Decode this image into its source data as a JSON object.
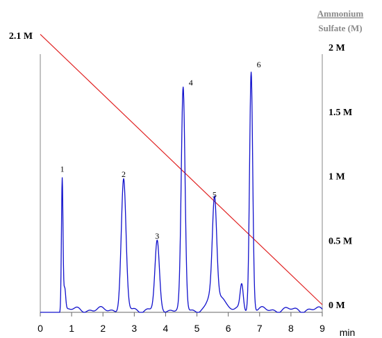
{
  "chart_data": {
    "type": "line",
    "x_axis": {
      "unit_label": "min",
      "range": [
        0,
        9
      ],
      "ticks": [
        "0",
        "1",
        "2",
        "3",
        "4",
        "5",
        "6",
        "7",
        "8",
        "9"
      ]
    },
    "right_axis": {
      "title_line1": "Ammonium",
      "title_line2": "Sulfate (M)",
      "range": [
        0,
        2
      ],
      "ticks": [
        {
          "value": 0,
          "label": "0 M"
        },
        {
          "value": 0.5,
          "label": "0.5 M"
        },
        {
          "value": 1,
          "label": "1 M"
        },
        {
          "value": 1.5,
          "label": "1.5 M"
        },
        {
          "value": 2,
          "label": "2 M"
        }
      ]
    },
    "gradient_start_label": "2.1 M",
    "series": [
      {
        "kind": "chromatogram",
        "color": "#1010cc",
        "baseline": 0.02,
        "start_x": 0.63,
        "peaks": [
          {
            "label": "1",
            "t": 0.7,
            "height": 1.04,
            "width": 0.025
          },
          {
            "label": "",
            "t": 0.78,
            "height": 0.17,
            "width": 0.03
          },
          {
            "label": "2",
            "t": 2.66,
            "height": 1.0,
            "width": 0.075
          },
          {
            "label": "3",
            "t": 3.73,
            "height": 0.52,
            "width": 0.07
          },
          {
            "label": "4",
            "t": 4.56,
            "height": 1.71,
            "width": 0.06
          },
          {
            "label": "",
            "t": 5.4,
            "height": 0.08,
            "width": 0.08
          },
          {
            "label": "5",
            "t": 5.56,
            "height": 0.84,
            "width": 0.07
          },
          {
            "label": "",
            "t": 5.78,
            "height": 0.12,
            "width": 0.12
          },
          {
            "label": "",
            "t": 6.43,
            "height": 0.2,
            "width": 0.05
          },
          {
            "label": "6",
            "t": 6.73,
            "height": 1.85,
            "width": 0.05
          }
        ]
      },
      {
        "kind": "gradient",
        "color": "#e02020",
        "points": [
          [
            0,
            2.1
          ],
          [
            9,
            0
          ]
        ]
      }
    ]
  }
}
